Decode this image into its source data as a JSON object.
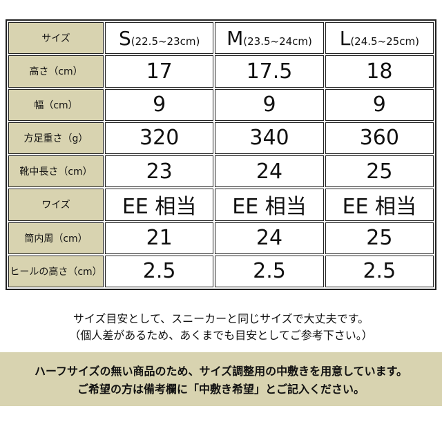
{
  "table": {
    "header": {
      "label": "サイズ",
      "columns": [
        {
          "size": "S",
          "range": "(22.5~23cm)"
        },
        {
          "size": "M",
          "range": "(23.5~24cm)"
        },
        {
          "size": "L",
          "range": "(24.5~25cm)"
        }
      ]
    },
    "rows": [
      {
        "label": "高さ（cm）",
        "values": [
          "17",
          "17.5",
          "18"
        ]
      },
      {
        "label": "幅（cm）",
        "values": [
          "9",
          "9",
          "9"
        ]
      },
      {
        "label": "方足重さ（g）",
        "values": [
          "320",
          "340",
          "360"
        ]
      },
      {
        "label": "靴中長さ（cm）",
        "values": [
          "23",
          "24",
          "25"
        ]
      },
      {
        "label": "ワイズ",
        "values": [
          "EE 相当",
          "EE 相当",
          "EE 相当"
        ]
      },
      {
        "label": "筒内周（cm）",
        "values": [
          "21",
          "24",
          "25"
        ]
      },
      {
        "label": "ヒールの高さ（cm）",
        "values": [
          "2.5",
          "2.5",
          "2.5"
        ]
      }
    ]
  },
  "notes": [
    "サイズ目安として、スニーカーと同じサイズで大丈夫です。",
    "（個人差があるため、あくまでも目安としてご参考下さい。）"
  ],
  "banner": [
    "ハーフサイズの無い商品のため、サイズ調整用の中敷きを用意しています。",
    "ご希望の方は備考欄に「中敷き希望」とご記入ください。"
  ]
}
